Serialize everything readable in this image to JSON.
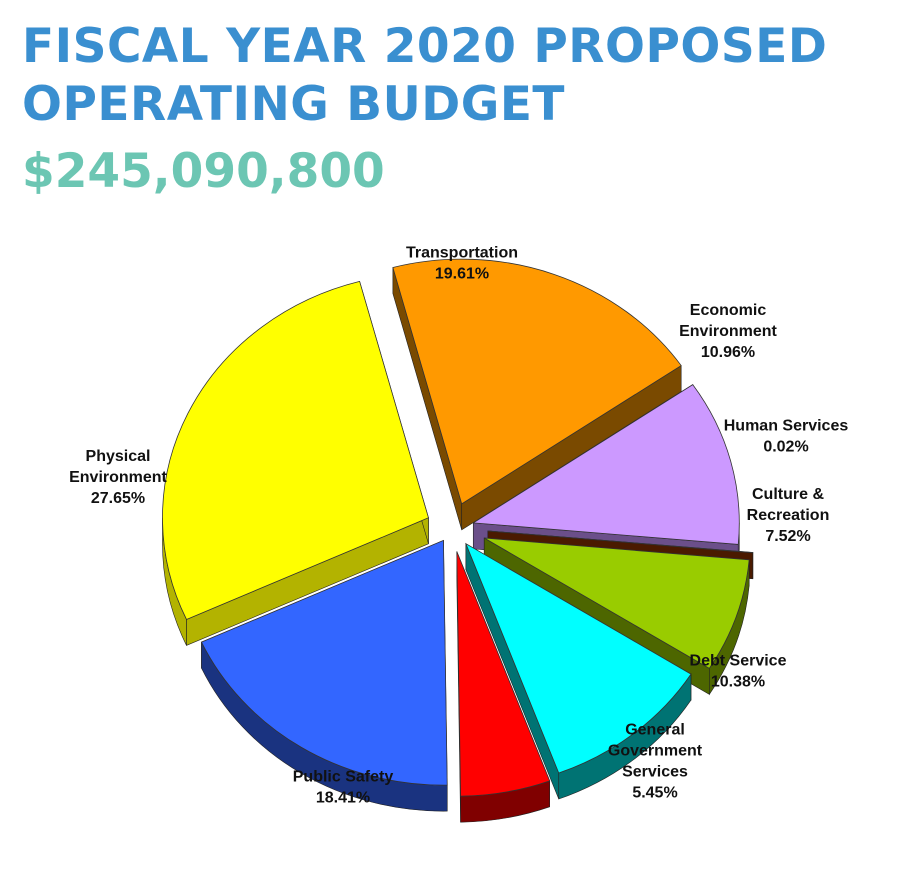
{
  "header": {
    "title_line1": "FISCAL YEAR 2020 PROPOSED",
    "title_line2": "OPERATING BUDGET",
    "total": "$245,090,800"
  },
  "chart_data": {
    "type": "pie",
    "title": "FISCAL YEAR 2020 PROPOSED OPERATING BUDGET",
    "subtitle": "$245,090,800",
    "style": "3d-exploded",
    "slices": [
      {
        "name": "Transportation",
        "label_lines": [
          "Transportation"
        ],
        "value": 19.61,
        "display": "19.61%",
        "color": "#ff9900",
        "side": "#7a4a00"
      },
      {
        "name": "Economic Environment",
        "label_lines": [
          "Economic",
          "Environment"
        ],
        "value": 10.96,
        "display": "10.96%",
        "color": "#cc99ff",
        "side": "#6b4f8a"
      },
      {
        "name": "Human Services",
        "label_lines": [
          "Human Services"
        ],
        "value": 0.02,
        "display": "0.02%",
        "color": "#993300",
        "side": "#4a1a00"
      },
      {
        "name": "Culture & Recreation",
        "label_lines": [
          "Culture &",
          "Recreation"
        ],
        "value": 7.52,
        "display": "7.52%",
        "color": "#99cc00",
        "side": "#4d6600"
      },
      {
        "name": "Debt Service",
        "label_lines": [
          "Debt Service"
        ],
        "value": 10.38,
        "display": "10.38%",
        "color": "#00ffff",
        "side": "#007373"
      },
      {
        "name": "General Government Services",
        "label_lines": [
          "General",
          "Government",
          "Services"
        ],
        "value": 5.45,
        "display": "5.45%",
        "color": "#ff0000",
        "side": "#800000"
      },
      {
        "name": "Public Safety",
        "label_lines": [
          "Public Safety"
        ],
        "value": 18.41,
        "display": "18.41%",
        "color": "#3366ff",
        "side": "#1a3380"
      },
      {
        "name": "Physical Environment",
        "label_lines": [
          "Physical",
          "Environment"
        ],
        "value": 27.65,
        "display": "27.65%",
        "color": "#ffff00",
        "side": "#b3b300"
      }
    ]
  }
}
